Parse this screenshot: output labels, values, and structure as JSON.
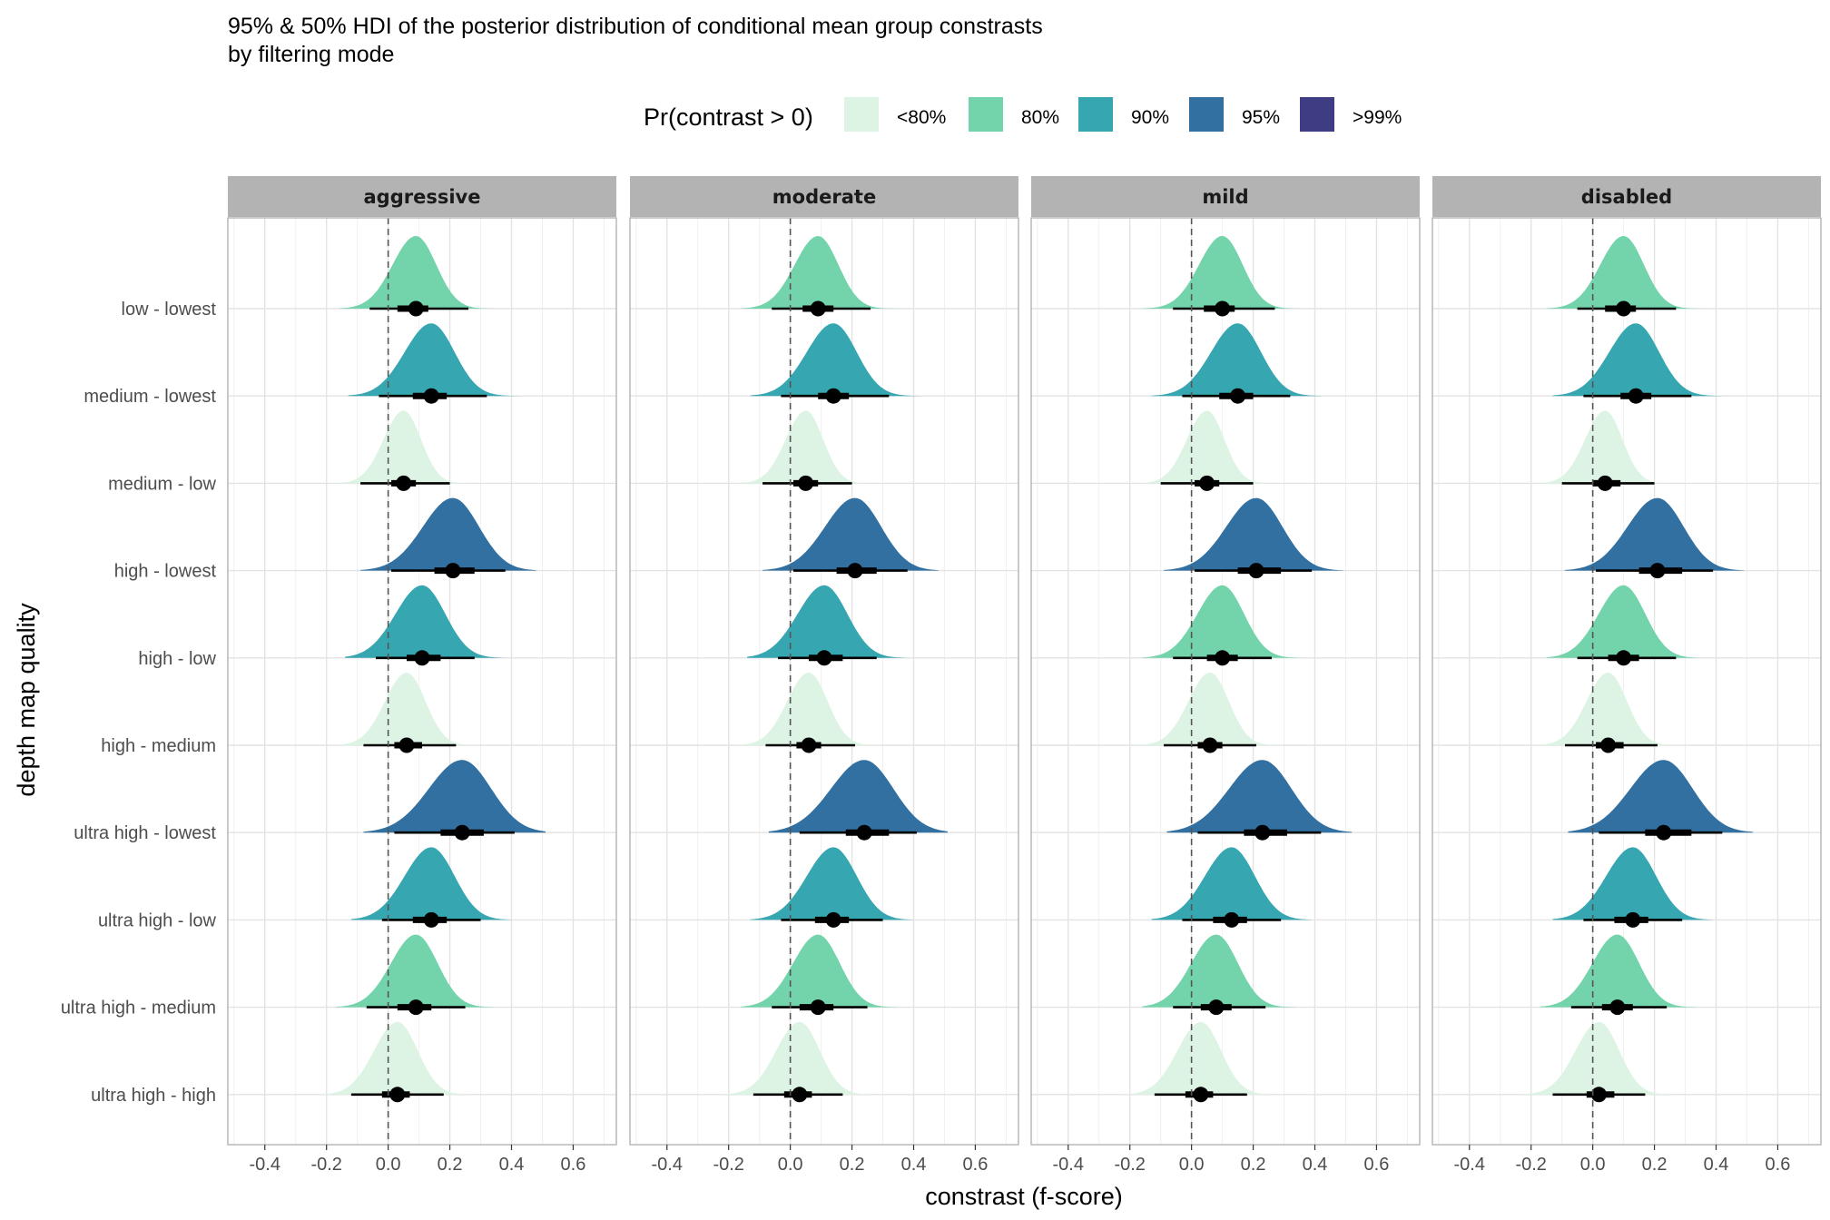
{
  "chart_data": {
    "type": "halfeye",
    "title": "95% & 50% HDI of the posterior distribution of conditional mean group constrasts",
    "subtitle": "by filtering mode",
    "xlabel": "constrast (f-score)",
    "ylabel": "depth map quality",
    "xlim": [
      -0.52,
      0.74
    ],
    "x_ticks": [
      "-0.4",
      "-0.2",
      "0.0",
      "0.2",
      "0.4",
      "0.6"
    ],
    "x_tick_values": [
      -0.4,
      -0.2,
      0.0,
      0.2,
      0.4,
      0.6
    ],
    "reference_line": 0,
    "grid": true,
    "legend": {
      "title": "Pr(contrast > 0)",
      "position": "top",
      "entries": [
        {
          "label": "<80%",
          "color": "#ddf4e4"
        },
        {
          "label": "80%",
          "color": "#73d3ab"
        },
        {
          "label": "90%",
          "color": "#36a6b0"
        },
        {
          "label": "95%",
          "color": "#3170a0"
        },
        {
          "label": ">99%",
          "color": "#3e3c82"
        }
      ]
    },
    "categories": [
      "low - lowest",
      "medium - lowest",
      "medium - low",
      "high - lowest",
      "high - low",
      "high - medium",
      "ultra high - lowest",
      "ultra high - low",
      "ultra high - medium",
      "ultra high - high"
    ],
    "facets": [
      {
        "name": "aggressive",
        "contrasts": [
          {
            "median": 0.09,
            "hdi50": [
              0.03,
              0.13
            ],
            "hdi95": [
              -0.06,
              0.26
            ],
            "sd": 0.07,
            "prob": "80%"
          },
          {
            "median": 0.14,
            "hdi50": [
              0.08,
              0.19
            ],
            "hdi95": [
              -0.03,
              0.32
            ],
            "sd": 0.08,
            "prob": "90%"
          },
          {
            "median": 0.05,
            "hdi50": [
              0.01,
              0.09
            ],
            "hdi95": [
              -0.09,
              0.2
            ],
            "sd": 0.06,
            "prob": "<80%"
          },
          {
            "median": 0.21,
            "hdi50": [
              0.15,
              0.28
            ],
            "hdi95": [
              0.01,
              0.38
            ],
            "sd": 0.09,
            "prob": "95%"
          },
          {
            "median": 0.11,
            "hdi50": [
              0.06,
              0.17
            ],
            "hdi95": [
              -0.04,
              0.28
            ],
            "sd": 0.08,
            "prob": "90%"
          },
          {
            "median": 0.06,
            "hdi50": [
              0.02,
              0.11
            ],
            "hdi95": [
              -0.08,
              0.22
            ],
            "sd": 0.065,
            "prob": "<80%"
          },
          {
            "median": 0.24,
            "hdi50": [
              0.17,
              0.31
            ],
            "hdi95": [
              0.02,
              0.41
            ],
            "sd": 0.1,
            "prob": "95%"
          },
          {
            "median": 0.14,
            "hdi50": [
              0.08,
              0.19
            ],
            "hdi95": [
              -0.02,
              0.3
            ],
            "sd": 0.08,
            "prob": "90%"
          },
          {
            "median": 0.09,
            "hdi50": [
              0.03,
              0.14
            ],
            "hdi95": [
              -0.07,
              0.25
            ],
            "sd": 0.075,
            "prob": "80%"
          },
          {
            "median": 0.03,
            "hdi50": [
              -0.02,
              0.07
            ],
            "hdi95": [
              -0.12,
              0.18
            ],
            "sd": 0.07,
            "prob": "<80%"
          }
        ]
      },
      {
        "name": "moderate",
        "contrasts": [
          {
            "median": 0.09,
            "hdi50": [
              0.04,
              0.14
            ],
            "hdi95": [
              -0.06,
              0.26
            ],
            "sd": 0.07,
            "prob": "80%"
          },
          {
            "median": 0.14,
            "hdi50": [
              0.09,
              0.19
            ],
            "hdi95": [
              -0.03,
              0.32
            ],
            "sd": 0.08,
            "prob": "90%"
          },
          {
            "median": 0.05,
            "hdi50": [
              0.01,
              0.09
            ],
            "hdi95": [
              -0.09,
              0.2
            ],
            "sd": 0.06,
            "prob": "<80%"
          },
          {
            "median": 0.21,
            "hdi50": [
              0.15,
              0.28
            ],
            "hdi95": [
              0.01,
              0.38
            ],
            "sd": 0.09,
            "prob": "95%"
          },
          {
            "median": 0.11,
            "hdi50": [
              0.06,
              0.17
            ],
            "hdi95": [
              -0.04,
              0.28
            ],
            "sd": 0.08,
            "prob": "90%"
          },
          {
            "median": 0.06,
            "hdi50": [
              0.02,
              0.1
            ],
            "hdi95": [
              -0.08,
              0.21
            ],
            "sd": 0.065,
            "prob": "<80%"
          },
          {
            "median": 0.24,
            "hdi50": [
              0.18,
              0.32
            ],
            "hdi95": [
              0.03,
              0.41
            ],
            "sd": 0.1,
            "prob": "95%"
          },
          {
            "median": 0.14,
            "hdi50": [
              0.08,
              0.19
            ],
            "hdi95": [
              -0.03,
              0.3
            ],
            "sd": 0.08,
            "prob": "90%"
          },
          {
            "median": 0.09,
            "hdi50": [
              0.03,
              0.14
            ],
            "hdi95": [
              -0.06,
              0.25
            ],
            "sd": 0.075,
            "prob": "80%"
          },
          {
            "median": 0.03,
            "hdi50": [
              -0.02,
              0.07
            ],
            "hdi95": [
              -0.12,
              0.17
            ],
            "sd": 0.07,
            "prob": "<80%"
          }
        ]
      },
      {
        "name": "mild",
        "contrasts": [
          {
            "median": 0.1,
            "hdi50": [
              0.04,
              0.14
            ],
            "hdi95": [
              -0.06,
              0.27
            ],
            "sd": 0.07,
            "prob": "80%"
          },
          {
            "median": 0.15,
            "hdi50": [
              0.09,
              0.2
            ],
            "hdi95": [
              -0.03,
              0.32
            ],
            "sd": 0.08,
            "prob": "90%"
          },
          {
            "median": 0.05,
            "hdi50": [
              0.01,
              0.09
            ],
            "hdi95": [
              -0.1,
              0.2
            ],
            "sd": 0.06,
            "prob": "<80%"
          },
          {
            "median": 0.21,
            "hdi50": [
              0.15,
              0.29
            ],
            "hdi95": [
              0.01,
              0.39
            ],
            "sd": 0.09,
            "prob": "95%"
          },
          {
            "median": 0.1,
            "hdi50": [
              0.05,
              0.15
            ],
            "hdi95": [
              -0.06,
              0.26
            ],
            "sd": 0.075,
            "prob": "80%"
          },
          {
            "median": 0.06,
            "hdi50": [
              0.02,
              0.1
            ],
            "hdi95": [
              -0.09,
              0.21
            ],
            "sd": 0.065,
            "prob": "<80%"
          },
          {
            "median": 0.23,
            "hdi50": [
              0.17,
              0.31
            ],
            "hdi95": [
              0.02,
              0.42
            ],
            "sd": 0.1,
            "prob": "95%"
          },
          {
            "median": 0.13,
            "hdi50": [
              0.07,
              0.18
            ],
            "hdi95": [
              -0.03,
              0.29
            ],
            "sd": 0.08,
            "prob": "90%"
          },
          {
            "median": 0.08,
            "hdi50": [
              0.03,
              0.13
            ],
            "hdi95": [
              -0.06,
              0.24
            ],
            "sd": 0.075,
            "prob": "80%"
          },
          {
            "median": 0.03,
            "hdi50": [
              -0.02,
              0.07
            ],
            "hdi95": [
              -0.12,
              0.18
            ],
            "sd": 0.07,
            "prob": "<80%"
          }
        ]
      },
      {
        "name": "disabled",
        "contrasts": [
          {
            "median": 0.1,
            "hdi50": [
              0.04,
              0.14
            ],
            "hdi95": [
              -0.05,
              0.27
            ],
            "sd": 0.07,
            "prob": "80%"
          },
          {
            "median": 0.14,
            "hdi50": [
              0.09,
              0.19
            ],
            "hdi95": [
              -0.03,
              0.32
            ],
            "sd": 0.08,
            "prob": "90%"
          },
          {
            "median": 0.04,
            "hdi50": [
              0.0,
              0.09
            ],
            "hdi95": [
              -0.1,
              0.2
            ],
            "sd": 0.06,
            "prob": "<80%"
          },
          {
            "median": 0.21,
            "hdi50": [
              0.15,
              0.29
            ],
            "hdi95": [
              0.01,
              0.39
            ],
            "sd": 0.09,
            "prob": "95%"
          },
          {
            "median": 0.1,
            "hdi50": [
              0.05,
              0.15
            ],
            "hdi95": [
              -0.05,
              0.27
            ],
            "sd": 0.075,
            "prob": "80%"
          },
          {
            "median": 0.05,
            "hdi50": [
              0.01,
              0.1
            ],
            "hdi95": [
              -0.09,
              0.21
            ],
            "sd": 0.065,
            "prob": "<80%"
          },
          {
            "median": 0.23,
            "hdi50": [
              0.17,
              0.32
            ],
            "hdi95": [
              0.02,
              0.42
            ],
            "sd": 0.1,
            "prob": "95%"
          },
          {
            "median": 0.13,
            "hdi50": [
              0.07,
              0.18
            ],
            "hdi95": [
              -0.03,
              0.29
            ],
            "sd": 0.08,
            "prob": "90%"
          },
          {
            "median": 0.08,
            "hdi50": [
              0.03,
              0.13
            ],
            "hdi95": [
              -0.07,
              0.24
            ],
            "sd": 0.075,
            "prob": "80%"
          },
          {
            "median": 0.02,
            "hdi50": [
              -0.02,
              0.07
            ],
            "hdi95": [
              -0.13,
              0.17
            ],
            "sd": 0.07,
            "prob": "<80%"
          }
        ]
      }
    ]
  }
}
